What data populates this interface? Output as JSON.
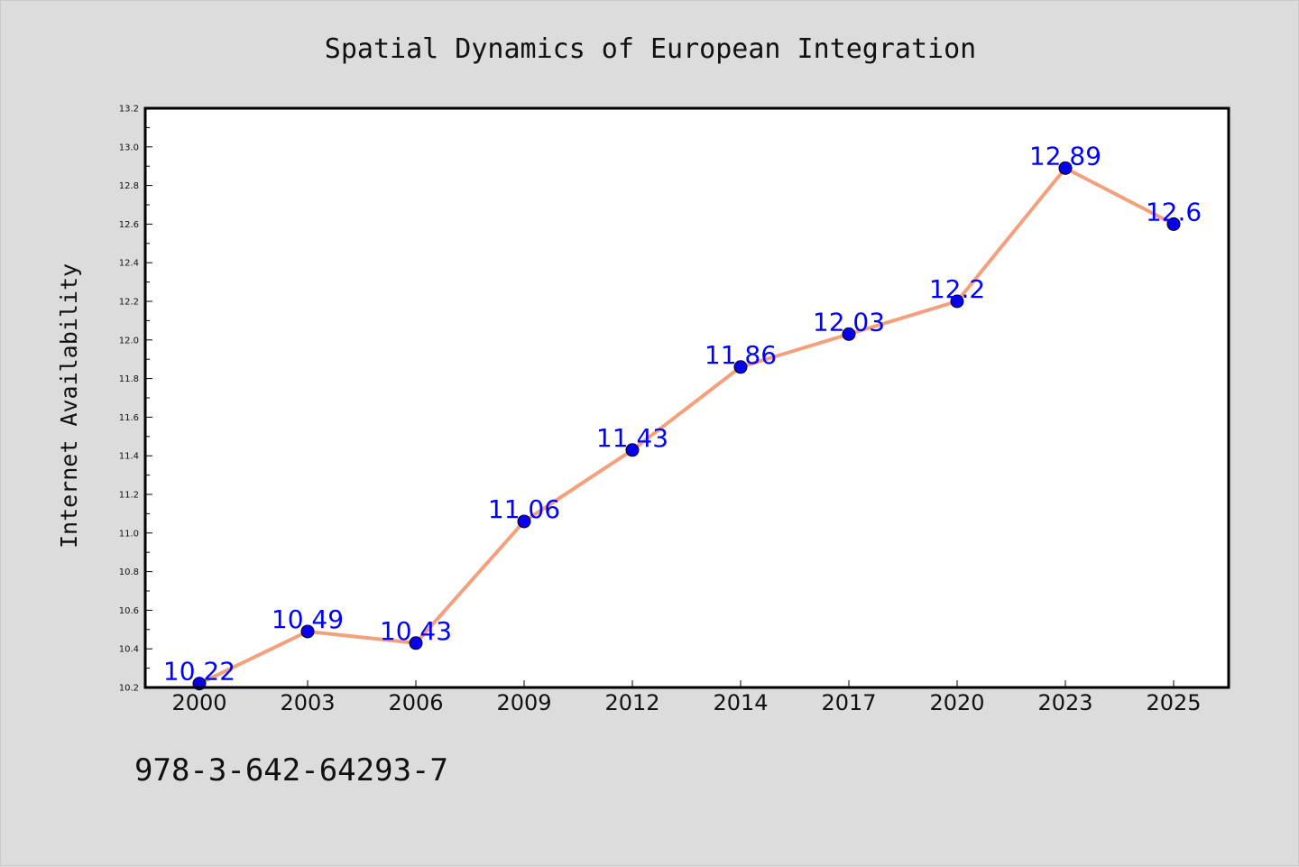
{
  "chart_data": {
    "type": "line",
    "title": "Spatial Dynamics of European Integration",
    "xlabel": "",
    "ylabel": "Internet Availability",
    "categories": [
      "2000",
      "2003",
      "2006",
      "2009",
      "2012",
      "2014",
      "2017",
      "2020",
      "2023",
      "2025"
    ],
    "series": [
      {
        "values": [
          10.22,
          10.49,
          10.43,
          11.06,
          11.43,
          11.86,
          12.03,
          12.2,
          12.89,
          12.6
        ],
        "data_labels": [
          "10.22",
          "10.49",
          "10.43",
          "11.06",
          "11.43",
          "11.86",
          "12.03",
          "12.2",
          "12.89",
          "12.6"
        ]
      }
    ],
    "ylim": [
      10.2,
      13.2
    ],
    "yticks": [
      "10.2",
      "10.4",
      "10.6",
      "10.8",
      "11.0",
      "11.2",
      "11.4",
      "11.6",
      "11.8",
      "12.0",
      "12.2",
      "12.4",
      "12.6",
      "12.8",
      "13.0",
      "13.2"
    ],
    "grid": false,
    "legend": "none",
    "colors": {
      "line": "#f4a07c",
      "marker": "#0a00f0",
      "data_label": "#0000ff",
      "background": "#dcdcdc",
      "plot_background": "#ffffff"
    }
  },
  "footer": {
    "isbn": "978-3-642-64293-7"
  }
}
